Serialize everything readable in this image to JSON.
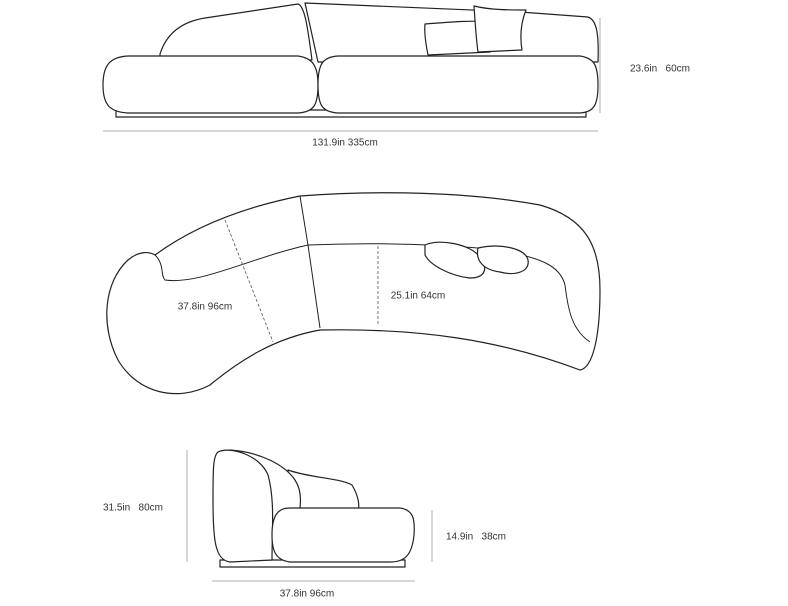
{
  "front_view": {
    "height": "23.6in   60cm",
    "width": "131.9in 335cm"
  },
  "top_view": {
    "depth": "37.8in 96cm",
    "seat_depth": "25.1in 64cm"
  },
  "side_view": {
    "height": "31.5in   80cm",
    "seat_height": "14.9in   38cm",
    "depth": "37.8in 96cm"
  }
}
